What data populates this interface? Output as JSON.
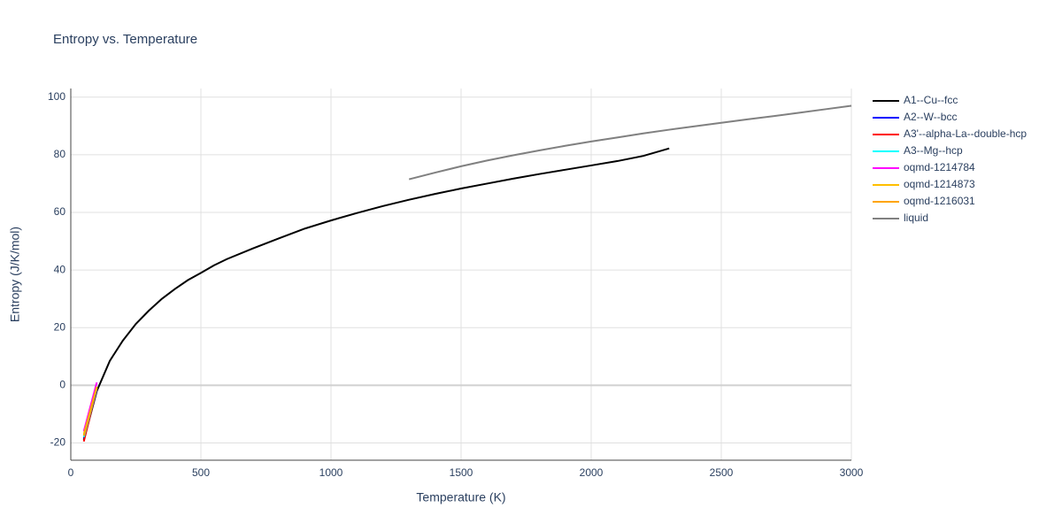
{
  "chart_data": {
    "type": "line",
    "title": "Entropy vs. Temperature",
    "x_label": "Temperature (K)",
    "y_label": "Entropy (J/K/mol)",
    "xlim": [
      0,
      3000
    ],
    "ylim": [
      -26,
      103
    ],
    "xticks": [
      0,
      500,
      1000,
      1500,
      2000,
      2500,
      3000
    ],
    "yticks": [
      -20,
      0,
      20,
      40,
      60,
      80,
      100
    ],
    "grid": true,
    "legend": "right",
    "series": [
      {
        "name": "A1--Cu--fcc",
        "color": "#000000",
        "x": [
          50,
          100,
          150,
          200,
          250,
          300,
          350,
          400,
          450,
          500,
          550,
          600,
          700,
          800,
          900,
          1000,
          1100,
          1200,
          1300,
          1400,
          1500,
          1600,
          1700,
          1800,
          1900,
          2000,
          2100,
          2200,
          2300
        ],
        "values": [
          -19,
          -2,
          8.5,
          15.5,
          21.3,
          25.9,
          30,
          33.4,
          36.5,
          39,
          41.6,
          43.8,
          47.5,
          51,
          54.4,
          57.2,
          59.8,
          62.2,
          64.4,
          66.4,
          68.3,
          70,
          71.7,
          73.3,
          74.8,
          76.3,
          77.8,
          79.6,
          82.2
        ]
      },
      {
        "name": "A2--W--bcc",
        "color": "#0000ff",
        "x": [
          50,
          100
        ],
        "values": [
          -18.5,
          -1.5
        ]
      },
      {
        "name": "A3'--alpha-La--double-hcp",
        "color": "#ff0000",
        "x": [
          50,
          100
        ],
        "values": [
          -19.5,
          -1
        ]
      },
      {
        "name": "A3--Mg--hcp",
        "color": "#00ffff",
        "x": [
          50,
          100
        ],
        "values": [
          -18,
          -1
        ]
      },
      {
        "name": "oqmd-1214784",
        "color": "#ff00ff",
        "x": [
          50,
          100
        ],
        "values": [
          -16,
          1
        ]
      },
      {
        "name": "oqmd-1214873",
        "color": "#ffbf00",
        "x": [
          50,
          100
        ],
        "values": [
          -17,
          -0.5
        ]
      },
      {
        "name": "oqmd-1216031",
        "color": "#ffa500",
        "x": [
          50,
          100
        ],
        "values": [
          -17.5,
          -0.8
        ]
      },
      {
        "name": "liquid",
        "color": "#808080",
        "x": [
          1300,
          1400,
          1500,
          1600,
          1700,
          1800,
          1900,
          2000,
          2100,
          2200,
          2300,
          2400,
          2500,
          2600,
          2700,
          2800,
          2900,
          3000
        ],
        "values": [
          71.5,
          73.8,
          76,
          78,
          79.8,
          81.5,
          83.1,
          84.6,
          86,
          87.4,
          88.7,
          89.9,
          91.1,
          92.3,
          93.4,
          94.6,
          95.8,
          97
        ]
      }
    ]
  }
}
